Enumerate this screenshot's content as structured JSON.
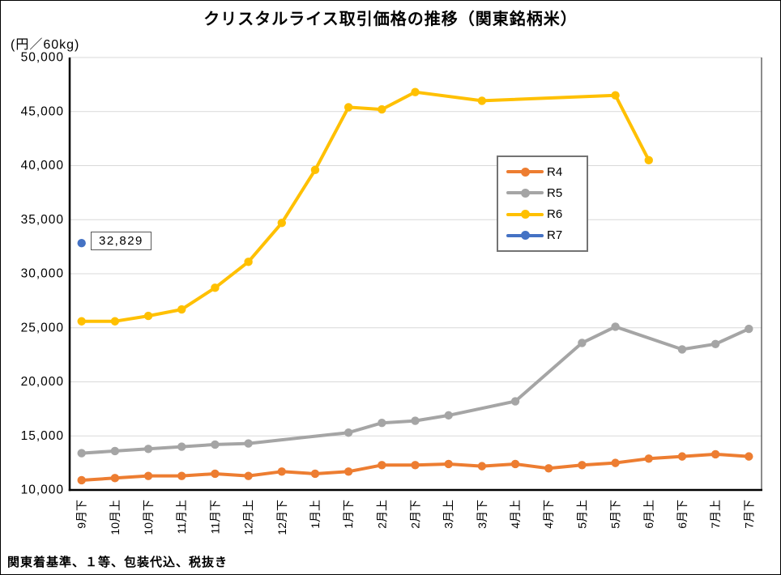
{
  "header": {
    "title": "クリスタルライス取引価格の推移（関東銘柄米）",
    "unit_label": "(円／60kg)"
  },
  "footer": {
    "note": "関東着基準、１等、包装代込、税抜き"
  },
  "annotation": {
    "label": "32,829"
  },
  "legend": {
    "items": [
      {
        "label": "R4",
        "color": "#ED7D31"
      },
      {
        "label": "R5",
        "color": "#A5A5A5"
      },
      {
        "label": "R6",
        "color": "#FFC000"
      },
      {
        "label": "R7",
        "color": "#4472C4"
      }
    ]
  },
  "colors": {
    "r4": "#ED7D31",
    "r5": "#A5A5A5",
    "r6": "#FFC000",
    "r7": "#4472C4",
    "gridline": "#D9D9D9",
    "axis": "#000000"
  },
  "chart_data": {
    "type": "line",
    "title": "クリスタルライス取引価格の推移（関東銘柄米）",
    "xlabel": "",
    "ylabel": "(円／60kg)",
    "ylim": [
      10000,
      50000
    ],
    "ytick_step": 5000,
    "grid": true,
    "legend_position": "middle-right",
    "categories": [
      "9月下",
      "10月上",
      "10月下",
      "11月上",
      "11月下",
      "12月上",
      "12月下",
      "1月上",
      "1月下",
      "2月上",
      "2月下",
      "3月上",
      "3月下",
      "4月上",
      "4月下",
      "5月上",
      "5月下",
      "6月上",
      "6月下",
      "7月上",
      "7月下"
    ],
    "y_ticks": [
      {
        "value": 10000,
        "label": "10,000"
      },
      {
        "value": 15000,
        "label": "15,000"
      },
      {
        "value": 20000,
        "label": "20,000"
      },
      {
        "value": 25000,
        "label": "25,000"
      },
      {
        "value": 30000,
        "label": "30,000"
      },
      {
        "value": 35000,
        "label": "35,000"
      },
      {
        "value": 40000,
        "label": "40,000"
      },
      {
        "value": 45000,
        "label": "45,000"
      },
      {
        "value": 50000,
        "label": "50,000"
      }
    ],
    "series": [
      {
        "name": "R4",
        "color": "#ED7D31",
        "values": [
          10900,
          11100,
          11300,
          11300,
          11500,
          11300,
          11700,
          11500,
          11700,
          12300,
          12300,
          12400,
          12200,
          12400,
          12000,
          12300,
          12500,
          12900,
          13100,
          13300,
          13100
        ]
      },
      {
        "name": "R5",
        "color": "#A5A5A5",
        "values": [
          13400,
          13600,
          13800,
          14000,
          14200,
          14300,
          null,
          null,
          15300,
          16200,
          16400,
          16900,
          null,
          18200,
          null,
          23600,
          25100,
          null,
          23000,
          23500,
          24900
        ]
      },
      {
        "name": "R6",
        "color": "#FFC000",
        "values": [
          25600,
          25600,
          26100,
          26700,
          28700,
          31100,
          34700,
          39600,
          45400,
          45200,
          46800,
          null,
          46000,
          null,
          null,
          null,
          46500,
          40500,
          null,
          null,
          null
        ]
      },
      {
        "name": "R7",
        "color": "#4472C4",
        "values": [
          32829,
          null,
          null,
          null,
          null,
          null,
          null,
          null,
          null,
          null,
          null,
          null,
          null,
          null,
          null,
          null,
          null,
          null,
          null,
          null,
          null
        ]
      }
    ],
    "annotation": {
      "series": "R7",
      "category": "9月下",
      "value": 32829,
      "label": "32,829"
    }
  }
}
